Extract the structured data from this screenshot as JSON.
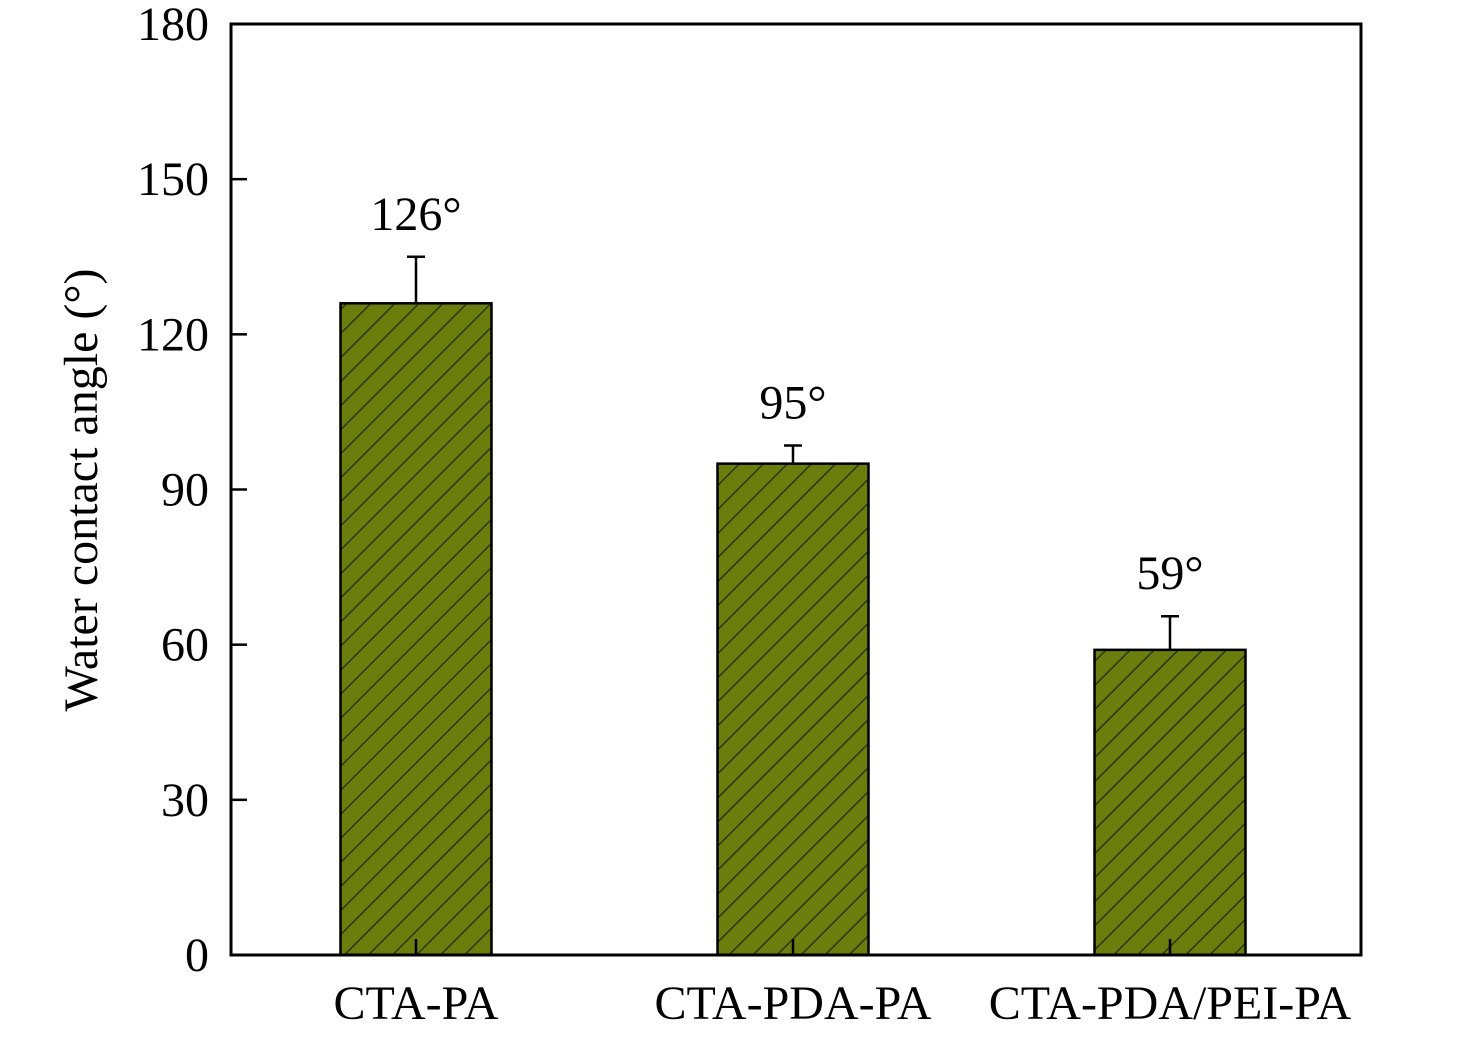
{
  "chart_data": {
    "type": "bar",
    "categories": [
      "CTA-PA",
      "CTA-PDA-PA",
      "CTA-PDA/PEI-PA"
    ],
    "values": [
      126,
      95,
      59
    ],
    "error_values": [
      9,
      3.5,
      6.5
    ],
    "data_labels": [
      "126°",
      "95°",
      "59°"
    ],
    "ylabel": "Water contact angle (°)",
    "xlabel": "",
    "ylim": [
      0,
      180
    ],
    "yticks": [
      0,
      30,
      60,
      90,
      120,
      150,
      180
    ],
    "grid": false,
    "legend": "none",
    "bar_color": "#6b7d0c",
    "hatch_color": "#2f3805",
    "bar_pattern": "diagonal-hatch"
  }
}
